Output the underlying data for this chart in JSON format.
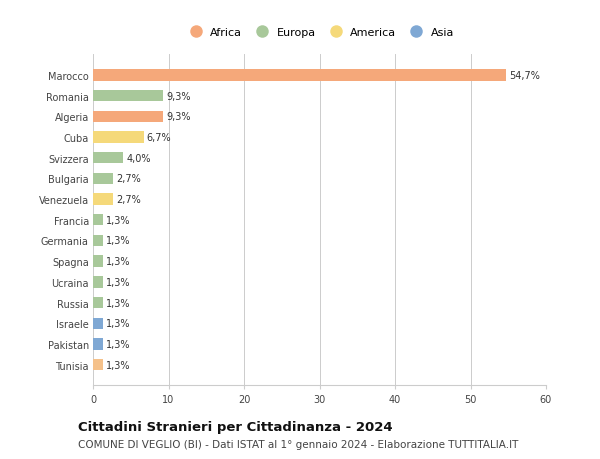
{
  "categories": [
    "Tunisia",
    "Pakistan",
    "Israele",
    "Russia",
    "Ucraina",
    "Spagna",
    "Germania",
    "Francia",
    "Venezuela",
    "Bulgaria",
    "Svizzera",
    "Cuba",
    "Algeria",
    "Romania",
    "Marocco"
  ],
  "values": [
    1.3,
    1.3,
    1.3,
    1.3,
    1.3,
    1.3,
    1.3,
    1.3,
    2.7,
    2.7,
    4.0,
    6.7,
    9.3,
    9.3,
    54.7
  ],
  "labels": [
    "1,3%",
    "1,3%",
    "1,3%",
    "1,3%",
    "1,3%",
    "1,3%",
    "1,3%",
    "1,3%",
    "2,7%",
    "2,7%",
    "4,0%",
    "6,7%",
    "9,3%",
    "9,3%",
    "54,7%"
  ],
  "colors": [
    "#f5c18a",
    "#7fa8d4",
    "#7fa8d4",
    "#a8c89a",
    "#a8c89a",
    "#a8c89a",
    "#a8c89a",
    "#a8c89a",
    "#f5d97a",
    "#a8c89a",
    "#a8c89a",
    "#f5d97a",
    "#f5a87a",
    "#a8c89a",
    "#f5a87a"
  ],
  "continent_colors": {
    "Africa": "#f5a87a",
    "Europa": "#a8c89a",
    "America": "#f5d97a",
    "Asia": "#7fa8d4"
  },
  "legend_labels": [
    "Africa",
    "Europa",
    "America",
    "Asia"
  ],
  "title": "Cittadini Stranieri per Cittadinanza - 2024",
  "subtitle": "COMUNE DI VEGLIO (BI) - Dati ISTAT al 1° gennaio 2024 - Elaborazione TUTTITALIA.IT",
  "xlim": [
    0,
    60
  ],
  "xticks": [
    0,
    10,
    20,
    30,
    40,
    50,
    60
  ],
  "background_color": "#ffffff",
  "bar_height": 0.55,
  "grid_color": "#cccccc",
  "title_fontsize": 9.5,
  "subtitle_fontsize": 7.5,
  "label_fontsize": 7.0,
  "tick_fontsize": 7.0,
  "legend_fontsize": 8.0
}
